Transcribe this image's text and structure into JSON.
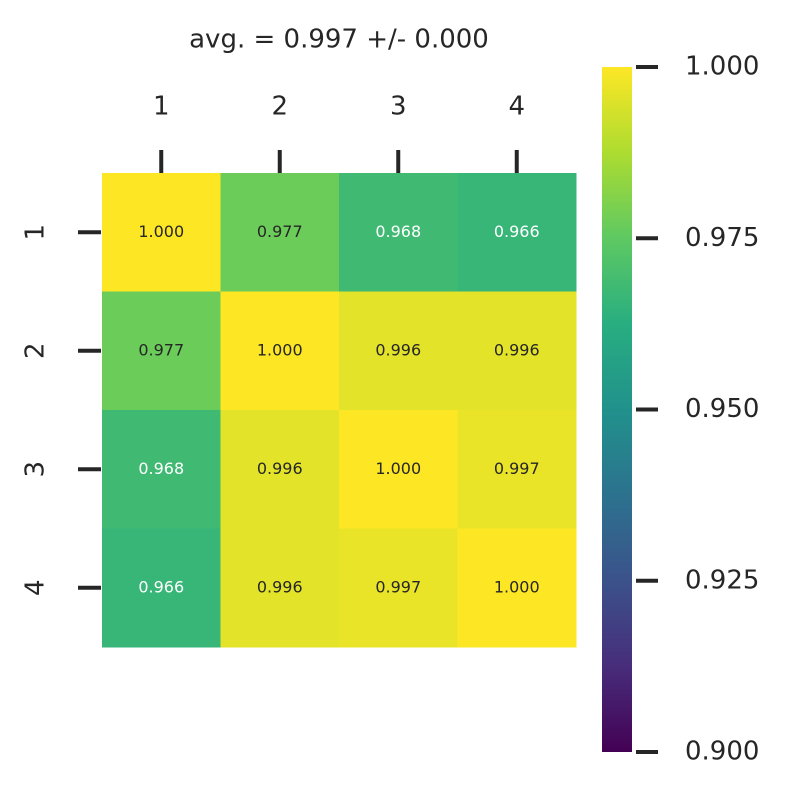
{
  "chart_data": {
    "type": "heatmap",
    "title": "avg. = 0.997 +/- 0.000",
    "x_categories": [
      "1",
      "2",
      "3",
      "4"
    ],
    "y_categories": [
      "1",
      "2",
      "3",
      "4"
    ],
    "values": [
      [
        1.0,
        0.977,
        0.968,
        0.966
      ],
      [
        0.977,
        1.0,
        0.996,
        0.996
      ],
      [
        0.968,
        0.996,
        1.0,
        0.997
      ],
      [
        0.966,
        0.996,
        0.997,
        1.0
      ]
    ],
    "value_labels": [
      [
        "1.000",
        "0.977",
        "0.968",
        "0.966"
      ],
      [
        "0.977",
        "1.000",
        "0.996",
        "0.996"
      ],
      [
        "0.968",
        "0.996",
        "1.000",
        "0.997"
      ],
      [
        "0.966",
        "0.996",
        "0.997",
        "1.000"
      ]
    ],
    "colormap": "viridis",
    "clim": [
      0.9,
      1.0
    ],
    "cticks": [
      {
        "value": 1.0,
        "label": "1.000"
      },
      0.975,
      {
        "value": 0.95,
        "label": "0.950"
      },
      0.925,
      {
        "value": 0.9,
        "label": "0.900"
      }
    ]
  }
}
